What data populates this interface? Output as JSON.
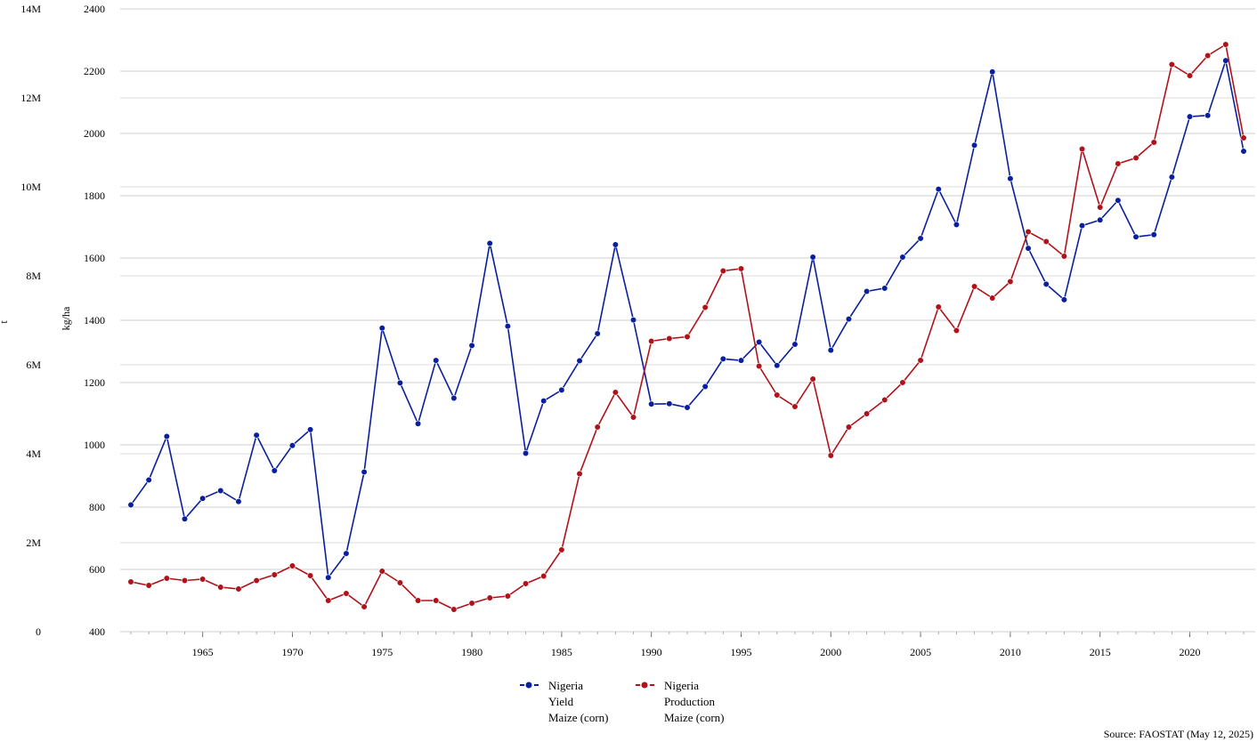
{
  "chart_data": {
    "type": "line",
    "title": "",
    "xlabel": "",
    "ylabel_left": "t",
    "ylabel_right_inner": "kg/ha",
    "x": [
      1961,
      1962,
      1963,
      1964,
      1965,
      1966,
      1967,
      1968,
      1969,
      1970,
      1971,
      1972,
      1973,
      1974,
      1975,
      1976,
      1977,
      1978,
      1979,
      1980,
      1981,
      1982,
      1983,
      1984,
      1985,
      1986,
      1987,
      1988,
      1989,
      1990,
      1991,
      1992,
      1993,
      1994,
      1995,
      1996,
      1997,
      1998,
      1999,
      2000,
      2001,
      2002,
      2003,
      2004,
      2005,
      2006,
      2007,
      2008,
      2009,
      2010,
      2011,
      2012,
      2013,
      2014,
      2015,
      2016,
      2017,
      2018,
      2019,
      2020,
      2021,
      2022,
      2023
    ],
    "x_ticks": [
      "1965",
      "1970",
      "1975",
      "1980",
      "1985",
      "1990",
      "1995",
      "2000",
      "2005",
      "2010",
      "2015",
      "2020"
    ],
    "y_kgha_ticks": [
      "400",
      "600",
      "800",
      "1000",
      "1200",
      "1400",
      "1600",
      "1800",
      "2000",
      "2200",
      "2400"
    ],
    "y_t_ticks": [
      "0",
      "2M",
      "4M",
      "6M",
      "8M",
      "10M",
      "12M",
      "14M"
    ],
    "ylim_kgha": [
      400,
      2400
    ],
    "ylim_t": [
      0,
      14000000
    ],
    "grid": true,
    "series": [
      {
        "name": "Nigeria\nYield\nMaize (corn)",
        "axis": "kg/ha",
        "color": "#0a1f9e",
        "values": [
          807,
          887,
          1027,
          762,
          828,
          853,
          818,
          1031,
          917,
          998,
          1049,
          574,
          651,
          913,
          1375,
          1199,
          1068,
          1271,
          1150,
          1319,
          1647,
          1381,
          973,
          1141,
          1176,
          1270,
          1357,
          1643,
          1401,
          1131,
          1132,
          1120,
          1187,
          1276,
          1271,
          1330,
          1255,
          1323,
          1603,
          1304,
          1404,
          1493,
          1503,
          1603,
          1663,
          1821,
          1707,
          1962,
          2198,
          1855,
          1631,
          1516,
          1466,
          1704,
          1722,
          1785,
          1668,
          1675,
          1860,
          2054,
          2058,
          2234,
          1943
        ]
      },
      {
        "name": "Nigeria\nProduction\nMaize (corn)",
        "axis": "t",
        "color": "#b0121a",
        "values": [
          1120000,
          1040000,
          1200000,
          1150000,
          1180000,
          1000000,
          960000,
          1150000,
          1280000,
          1480000,
          1260000,
          700000,
          860000,
          560000,
          1360000,
          1100000,
          700000,
          700000,
          500000,
          640000,
          760000,
          800000,
          1080000,
          1250000,
          1840000,
          3550000,
          4600000,
          5380000,
          4820000,
          6530000,
          6590000,
          6630000,
          7290000,
          8110000,
          8160000,
          5970000,
          5320000,
          5060000,
          5680000,
          3960000,
          4600000,
          4900000,
          5210000,
          5600000,
          6100000,
          7300000,
          6770000,
          7760000,
          7500000,
          7870000,
          8990000,
          8770000,
          8440000,
          10850000,
          9540000,
          10520000,
          10650000,
          11000000,
          12750000,
          12500000,
          12950000,
          13200000,
          11100000
        ]
      }
    ],
    "legend_position": "bottom-center"
  },
  "source": "Source: FAOSTAT (May 12, 2025)"
}
